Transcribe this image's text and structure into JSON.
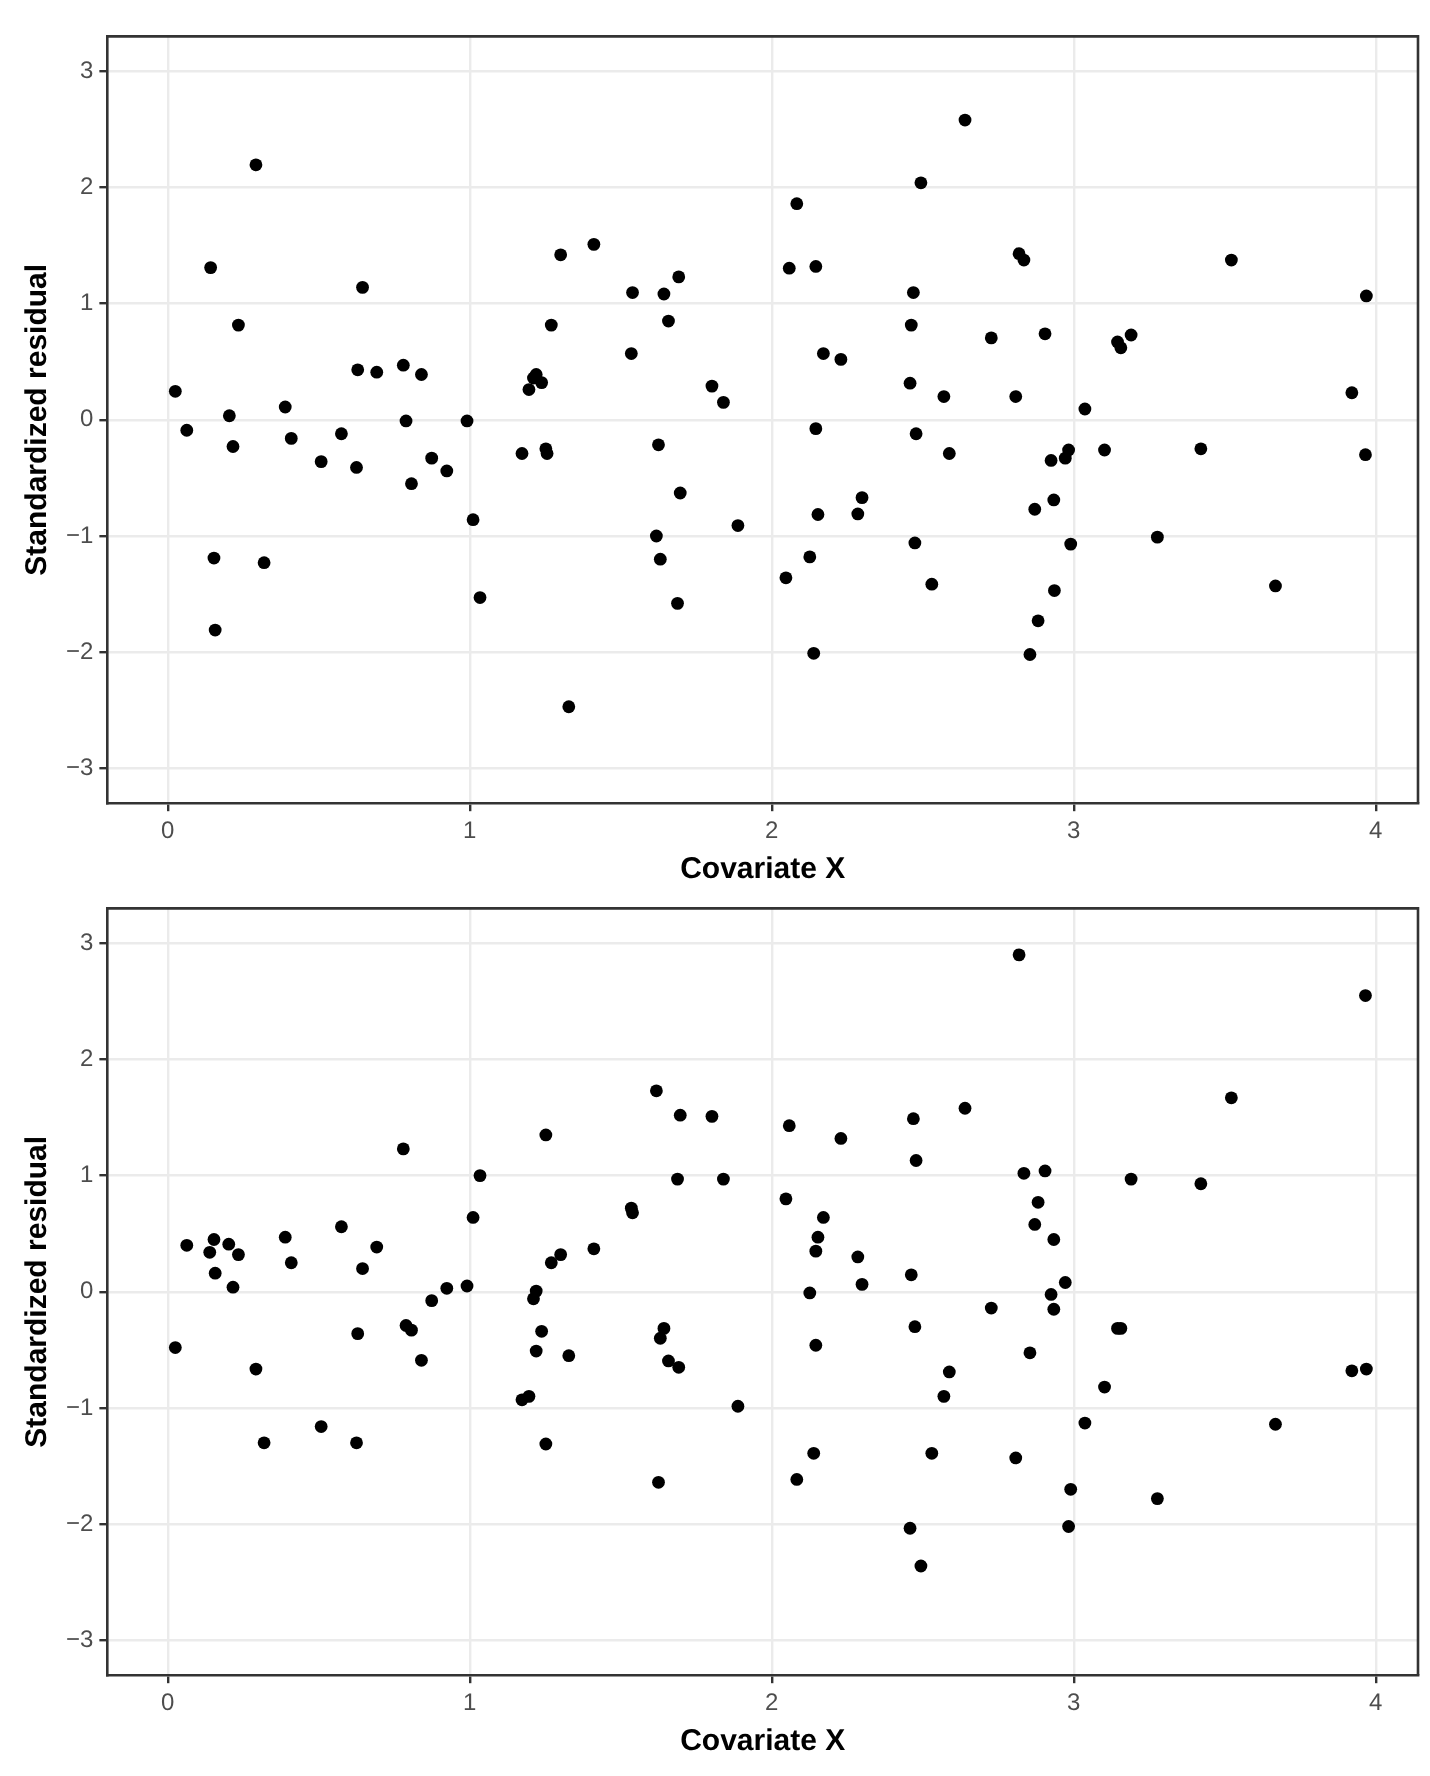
{
  "chart_data": [
    {
      "type": "scatter",
      "xlabel": "Covariate X",
      "ylabel": "Standardized residual",
      "xlim": [
        -0.2,
        4.14
      ],
      "ylim": [
        -3.3,
        3.3
      ],
      "xticks": [
        0,
        1,
        2,
        3,
        4
      ],
      "yticks": [
        -3,
        -2,
        -1,
        0,
        1,
        2,
        3
      ],
      "grid": true,
      "legend": false,
      "marker": "circle",
      "series": [
        {
          "color": "#000000",
          "x": [
            0.025,
            0.063,
            0.142,
            0.153,
            0.157,
            0.204,
            0.216,
            0.234,
            0.292,
            0.319,
            0.389,
            0.409,
            0.508,
            0.575,
            0.625,
            0.629,
            0.645,
            0.692,
            0.78,
            0.789,
            0.807,
            0.84,
            0.874,
            0.924,
            0.991,
            1.011,
            1.034,
            1.173,
            1.196,
            1.211,
            1.22,
            1.238,
            1.252,
            1.256,
            1.27,
            1.301,
            1.328,
            1.411,
            1.535,
            1.539,
            1.618,
            1.625,
            1.631,
            1.643,
            1.658,
            1.688,
            1.692,
            1.697,
            1.802,
            1.84,
            1.888,
            2.047,
            2.058,
            2.083,
            2.126,
            2.139,
            2.146,
            2.146,
            2.153,
            2.171,
            2.229,
            2.285,
            2.299,
            2.458,
            2.462,
            2.469,
            2.474,
            2.478,
            2.494,
            2.53,
            2.57,
            2.588,
            2.64,
            2.727,
            2.808,
            2.819,
            2.835,
            2.855,
            2.871,
            2.882,
            2.905,
            2.925,
            2.934,
            2.936,
            2.972,
            2.983,
            2.99,
            3.037,
            3.102,
            3.145,
            3.156,
            3.19,
            3.277,
            3.421,
            3.522,
            3.668,
            3.921,
            3.966,
            3.969
          ],
          "values": [
            0.245,
            -0.09,
            1.31,
            -1.19,
            -1.81,
            0.035,
            -0.23,
            0.815,
            2.195,
            -1.23,
            0.11,
            -0.16,
            -0.36,
            -0.12,
            -0.41,
            0.43,
            1.14,
            0.41,
            0.47,
            -0.01,
            -0.55,
            0.39,
            -0.33,
            -0.44,
            -0.01,
            -0.86,
            -1.53,
            -0.29,
            0.26,
            0.36,
            0.39,
            0.32,
            -0.25,
            -0.29,
            0.815,
            1.42,
            -2.47,
            1.51,
            0.57,
            1.095,
            -1.0,
            -0.215,
            -1.2,
            1.083,
            0.85,
            -1.58,
            1.23,
            -0.63,
            0.29,
            0.15,
            -0.91,
            -1.36,
            1.305,
            1.86,
            -1.18,
            -2.01,
            1.32,
            -0.076,
            -0.815,
            0.57,
            0.52,
            -0.81,
            -0.67,
            0.315,
            0.815,
            1.095,
            -1.06,
            -0.12,
            2.04,
            -1.415,
            0.2,
            -0.29,
            2.58,
            0.705,
            0.2,
            1.43,
            1.375,
            -2.02,
            -0.77,
            -1.73,
            0.74,
            -0.35,
            -0.69,
            -1.47,
            -0.33,
            -0.26,
            -1.07,
            0.093,
            -0.26,
            0.67,
            0.62,
            0.73,
            -1.01,
            -0.25,
            1.375,
            -1.43,
            0.233,
            -0.3,
            1.066
          ]
        }
      ]
    },
    {
      "type": "scatter",
      "xlabel": "Covariate X",
      "ylabel": "Standardized residual",
      "xlim": [
        -0.2,
        4.14
      ],
      "ylim": [
        -3.3,
        3.3
      ],
      "xticks": [
        0,
        1,
        2,
        3,
        4
      ],
      "yticks": [
        -3,
        -2,
        -1,
        0,
        1,
        2,
        3
      ],
      "grid": true,
      "legend": false,
      "marker": "circle",
      "series": [
        {
          "color": "#000000",
          "x": [
            0.025,
            0.063,
            0.139,
            0.153,
            0.157,
            0.202,
            0.216,
            0.234,
            0.292,
            0.319,
            0.389,
            0.409,
            0.508,
            0.575,
            0.625,
            0.629,
            0.645,
            0.692,
            0.78,
            0.789,
            0.807,
            0.84,
            0.874,
            0.924,
            0.991,
            1.011,
            1.034,
            1.173,
            1.196,
            1.211,
            1.22,
            1.238,
            1.22,
            1.252,
            1.252,
            1.27,
            1.301,
            1.328,
            1.411,
            1.535,
            1.539,
            1.618,
            1.625,
            1.631,
            1.643,
            1.658,
            1.692,
            1.688,
            1.697,
            1.802,
            1.84,
            1.888,
            2.047,
            2.058,
            2.083,
            2.126,
            2.139,
            2.146,
            2.146,
            2.153,
            2.171,
            2.229,
            2.285,
            2.299,
            2.458,
            2.462,
            2.469,
            2.474,
            2.478,
            2.494,
            2.53,
            2.57,
            2.588,
            2.64,
            2.727,
            2.808,
            2.819,
            2.835,
            2.855,
            2.871,
            2.882,
            2.905,
            2.925,
            2.934,
            2.934,
            2.972,
            2.983,
            2.99,
            3.037,
            3.102,
            3.145,
            3.156,
            3.19,
            3.277,
            3.421,
            3.522,
            3.668,
            3.921,
            3.966,
            3.969
          ],
          "values": [
            -0.48,
            0.4,
            0.34,
            0.45,
            0.16,
            0.41,
            0.04,
            0.32,
            -0.665,
            -1.3,
            0.47,
            0.25,
            -1.16,
            0.56,
            -1.3,
            -0.36,
            0.2,
            0.385,
            1.23,
            -0.29,
            -0.33,
            -0.59,
            -0.076,
            0.03,
            0.05,
            0.64,
            1.0,
            -0.93,
            -0.9,
            -0.06,
            0.006,
            -0.34,
            -0.51,
            1.35,
            -1.31,
            0.25,
            0.32,
            -0.55,
            0.37,
            0.72,
            0.68,
            1.73,
            -1.64,
            -0.4,
            -0.315,
            -0.595,
            -0.65,
            0.97,
            1.52,
            1.51,
            0.97,
            -0.985,
            0.8,
            1.43,
            -1.615,
            -0.01,
            -1.39,
            0.35,
            -0.46,
            0.47,
            0.64,
            1.32,
            0.3,
            0.064,
            -2.035,
            0.146,
            1.49,
            -0.3,
            1.13,
            -2.36,
            -1.39,
            -0.9,
            -0.69,
            1.58,
            -0.14,
            -1.43,
            2.9,
            1.02,
            -0.525,
            0.58,
            0.77,
            1.04,
            -0.023,
            0.45,
            -0.15,
            0.08,
            -2.02,
            -1.7,
            -1.13,
            -0.82,
            -0.315,
            -0.315,
            0.97,
            -1.78,
            0.93,
            1.67,
            -1.14,
            -0.68,
            2.55,
            -0.665
          ]
        }
      ]
    }
  ]
}
